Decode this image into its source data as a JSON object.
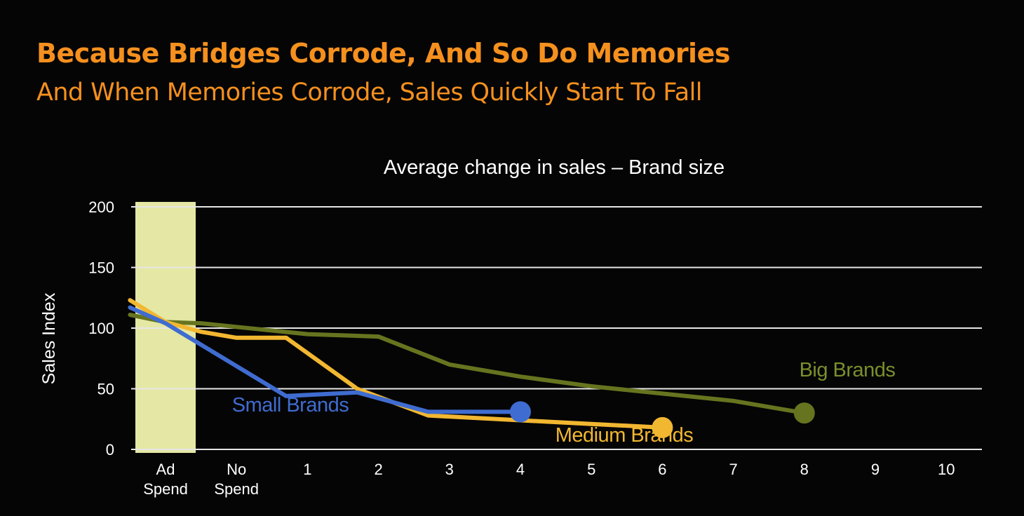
{
  "slide": {
    "headline": "Because Bridges Corrode, And So Do Memories",
    "subheadline": "And When Memories Corrode, Sales Quickly Start To Fall"
  },
  "colors": {
    "background": "#050505",
    "headline": "#f5901e",
    "grid": "#e6e6e6",
    "highlight": "#e4e8a4",
    "small": "#3f6cd0",
    "medium": "#f2b731",
    "big": "#67741f",
    "big_label": "#7a8f2c"
  },
  "chart_data": {
    "type": "line",
    "title": "Average change in sales – Brand size",
    "ylabel": "Sales Index",
    "xlabel": "",
    "ylim": [
      0,
      200
    ],
    "yticks": [
      0,
      50,
      100,
      150,
      200
    ],
    "categories": [
      "Ad Spend",
      "No Spend",
      "1",
      "2",
      "3",
      "4",
      "5",
      "6",
      "7",
      "8",
      "9",
      "10"
    ],
    "grid": true,
    "highlight_category": "Ad Spend",
    "series": [
      {
        "name": "Big Brands",
        "color": "#67741f",
        "label_color": "#7a8f2c",
        "points": [
          [
            -0.5,
            111
          ],
          [
            0,
            105
          ],
          [
            0.5,
            104
          ],
          [
            1,
            101
          ],
          [
            2,
            95
          ],
          [
            3,
            93
          ],
          [
            4,
            70
          ],
          [
            5,
            60
          ],
          [
            6,
            52
          ],
          [
            7,
            46
          ],
          [
            8,
            40
          ],
          [
            9,
            30
          ]
        ]
      },
      {
        "name": "Medium Brands",
        "color": "#f2b731",
        "label_color": "#f2b731",
        "points": [
          [
            -0.5,
            123
          ],
          [
            0,
            105
          ],
          [
            0.5,
            97
          ],
          [
            1,
            92
          ],
          [
            1.7,
            92
          ],
          [
            2.7,
            50
          ],
          [
            3.7,
            28
          ],
          [
            5,
            24
          ],
          [
            6,
            21
          ],
          [
            7,
            18
          ]
        ]
      },
      {
        "name": "Small Brands",
        "color": "#3f6cd0",
        "label_color": "#3f6cd0",
        "points": [
          [
            -0.5,
            117
          ],
          [
            0,
            104
          ],
          [
            1.7,
            44
          ],
          [
            2.7,
            47
          ],
          [
            3.7,
            31
          ],
          [
            5,
            31
          ]
        ]
      }
    ]
  }
}
